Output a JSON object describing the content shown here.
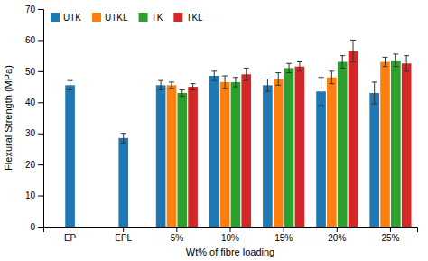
{
  "chart_data": {
    "type": "bar",
    "categories": [
      "EP",
      "EPL",
      "5%",
      "10%",
      "15%",
      "20%",
      "25%"
    ],
    "series": [
      {
        "name": "UTK",
        "values": [
          45.5,
          28.5,
          45.5,
          48.5,
          45.5,
          43.5,
          43.0
        ],
        "errors": [
          1.5,
          1.5,
          1.5,
          1.5,
          2.0,
          4.5,
          3.5
        ]
      },
      {
        "name": "UTKL",
        "values": [
          null,
          null,
          45.5,
          46.5,
          47.5,
          48.0,
          53.0
        ],
        "errors": [
          null,
          null,
          1.0,
          2.0,
          2.0,
          2.0,
          1.5
        ]
      },
      {
        "name": "TK",
        "values": [
          null,
          null,
          43.0,
          46.5,
          51.0,
          53.0,
          53.5
        ],
        "errors": [
          null,
          null,
          1.0,
          1.5,
          1.5,
          2.0,
          2.0
        ]
      },
      {
        "name": "TKL",
        "values": [
          null,
          null,
          45.0,
          49.0,
          51.5,
          56.5,
          52.5
        ],
        "errors": [
          null,
          null,
          1.0,
          2.0,
          1.5,
          3.5,
          2.5
        ]
      }
    ],
    "ylim": [
      0,
      70
    ],
    "yticks": [
      0,
      10,
      20,
      30,
      40,
      50,
      60,
      70
    ],
    "ylabel": "Flexural Strength (MPa)",
    "xlabel": "Wt% of fibre loading",
    "legend": "upper left",
    "grid": false
  }
}
